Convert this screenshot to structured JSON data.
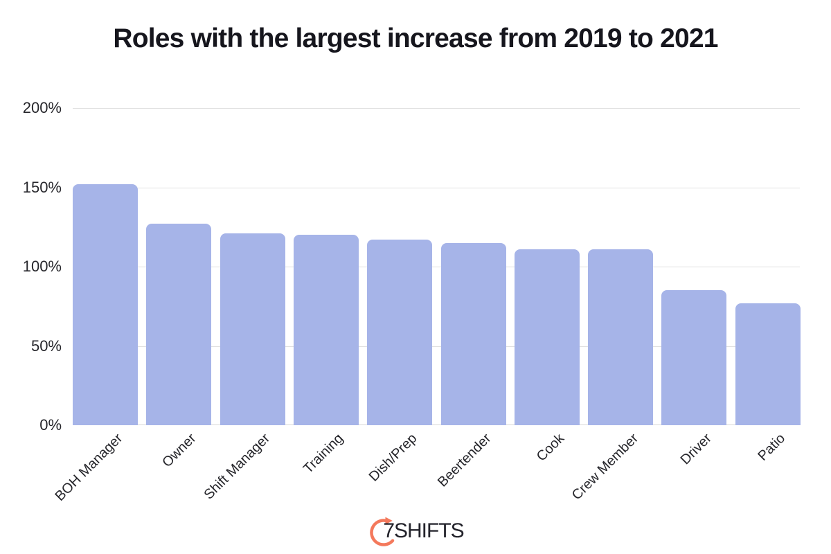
{
  "chart_data": {
    "type": "bar",
    "title": "Roles with the largest increase from 2019 to 2021",
    "categories": [
      "BOH Manager",
      "Owner",
      "Shift Manager",
      "Training",
      "Dish/Prep",
      "Beertender",
      "Cook",
      "Crew Member",
      "Driver",
      "Patio"
    ],
    "values": [
      152,
      127,
      121,
      120,
      117,
      115,
      111,
      111,
      85,
      77
    ],
    "unit": "%",
    "xlabel": "",
    "ylabel": "",
    "ylim": [
      0,
      200
    ],
    "yticks": [
      0,
      50,
      100,
      150,
      200
    ],
    "ytick_labels": [
      "0%",
      "50%",
      "100%",
      "150%",
      "200%"
    ],
    "grid": true,
    "legend": "none",
    "bar_color": "#a6b4e8",
    "gridline_color": "#e0e0e0",
    "axis_text_color": "#26262b",
    "title_color": "#16161d"
  },
  "footer": {
    "logo_text": "7SHIFTS",
    "logo_icon": "stopwatch-arrow-icon",
    "logo_accent_color": "#f4795c",
    "logo_text_color": "#23232b"
  }
}
